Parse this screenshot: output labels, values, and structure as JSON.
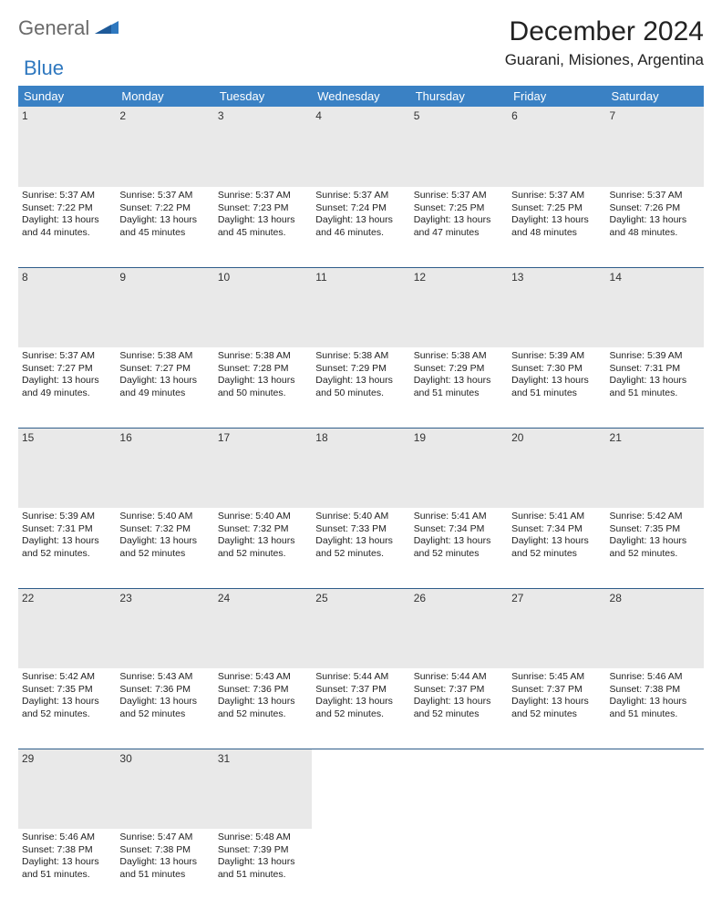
{
  "brand": {
    "general": "General",
    "blue": "Blue"
  },
  "header": {
    "month_title": "December 2024",
    "location": "Guarani, Misiones, Argentina"
  },
  "colors": {
    "header_bg": "#3a81c4",
    "header_text": "#ffffff",
    "daynum_bg": "#e9e9e9",
    "separator": "#2f5d8a",
    "brand_gray": "#6a6a6a",
    "brand_blue": "#2f78bf"
  },
  "weekdays": [
    "Sunday",
    "Monday",
    "Tuesday",
    "Wednesday",
    "Thursday",
    "Friday",
    "Saturday"
  ],
  "weeks": [
    [
      {
        "n": "1",
        "sr": "5:37 AM",
        "ss": "7:22 PM",
        "dl": "13 hours and 44 minutes."
      },
      {
        "n": "2",
        "sr": "5:37 AM",
        "ss": "7:22 PM",
        "dl": "13 hours and 45 minutes"
      },
      {
        "n": "3",
        "sr": "5:37 AM",
        "ss": "7:23 PM",
        "dl": "13 hours and 45 minutes."
      },
      {
        "n": "4",
        "sr": "5:37 AM",
        "ss": "7:24 PM",
        "dl": "13 hours and 46 minutes."
      },
      {
        "n": "5",
        "sr": "5:37 AM",
        "ss": "7:25 PM",
        "dl": "13 hours and 47 minutes"
      },
      {
        "n": "6",
        "sr": "5:37 AM",
        "ss": "7:25 PM",
        "dl": "13 hours and 48 minutes"
      },
      {
        "n": "7",
        "sr": "5:37 AM",
        "ss": "7:26 PM",
        "dl": "13 hours and 48 minutes."
      }
    ],
    [
      {
        "n": "8",
        "sr": "5:37 AM",
        "ss": "7:27 PM",
        "dl": "13 hours and 49 minutes."
      },
      {
        "n": "9",
        "sr": "5:38 AM",
        "ss": "7:27 PM",
        "dl": "13 hours and 49 minutes"
      },
      {
        "n": "10",
        "sr": "5:38 AM",
        "ss": "7:28 PM",
        "dl": "13 hours and 50 minutes."
      },
      {
        "n": "11",
        "sr": "5:38 AM",
        "ss": "7:29 PM",
        "dl": "13 hours and 50 minutes."
      },
      {
        "n": "12",
        "sr": "5:38 AM",
        "ss": "7:29 PM",
        "dl": "13 hours and 51 minutes"
      },
      {
        "n": "13",
        "sr": "5:39 AM",
        "ss": "7:30 PM",
        "dl": "13 hours and 51 minutes"
      },
      {
        "n": "14",
        "sr": "5:39 AM",
        "ss": "7:31 PM",
        "dl": "13 hours and 51 minutes."
      }
    ],
    [
      {
        "n": "15",
        "sr": "5:39 AM",
        "ss": "7:31 PM",
        "dl": "13 hours and 52 minutes."
      },
      {
        "n": "16",
        "sr": "5:40 AM",
        "ss": "7:32 PM",
        "dl": "13 hours and 52 minutes"
      },
      {
        "n": "17",
        "sr": "5:40 AM",
        "ss": "7:32 PM",
        "dl": "13 hours and 52 minutes."
      },
      {
        "n": "18",
        "sr": "5:40 AM",
        "ss": "7:33 PM",
        "dl": "13 hours and 52 minutes."
      },
      {
        "n": "19",
        "sr": "5:41 AM",
        "ss": "7:34 PM",
        "dl": "13 hours and 52 minutes"
      },
      {
        "n": "20",
        "sr": "5:41 AM",
        "ss": "7:34 PM",
        "dl": "13 hours and 52 minutes"
      },
      {
        "n": "21",
        "sr": "5:42 AM",
        "ss": "7:35 PM",
        "dl": "13 hours and 52 minutes."
      }
    ],
    [
      {
        "n": "22",
        "sr": "5:42 AM",
        "ss": "7:35 PM",
        "dl": "13 hours and 52 minutes."
      },
      {
        "n": "23",
        "sr": "5:43 AM",
        "ss": "7:36 PM",
        "dl": "13 hours and 52 minutes"
      },
      {
        "n": "24",
        "sr": "5:43 AM",
        "ss": "7:36 PM",
        "dl": "13 hours and 52 minutes."
      },
      {
        "n": "25",
        "sr": "5:44 AM",
        "ss": "7:37 PM",
        "dl": "13 hours and 52 minutes."
      },
      {
        "n": "26",
        "sr": "5:44 AM",
        "ss": "7:37 PM",
        "dl": "13 hours and 52 minutes"
      },
      {
        "n": "27",
        "sr": "5:45 AM",
        "ss": "7:37 PM",
        "dl": "13 hours and 52 minutes"
      },
      {
        "n": "28",
        "sr": "5:46 AM",
        "ss": "7:38 PM",
        "dl": "13 hours and 51 minutes."
      }
    ],
    [
      {
        "n": "29",
        "sr": "5:46 AM",
        "ss": "7:38 PM",
        "dl": "13 hours and 51 minutes."
      },
      {
        "n": "30",
        "sr": "5:47 AM",
        "ss": "7:38 PM",
        "dl": "13 hours and 51 minutes"
      },
      {
        "n": "31",
        "sr": "5:48 AM",
        "ss": "7:39 PM",
        "dl": "13 hours and 51 minutes."
      },
      null,
      null,
      null,
      null
    ]
  ],
  "labels": {
    "sunrise": "Sunrise:",
    "sunset": "Sunset:",
    "daylight": "Daylight:"
  }
}
